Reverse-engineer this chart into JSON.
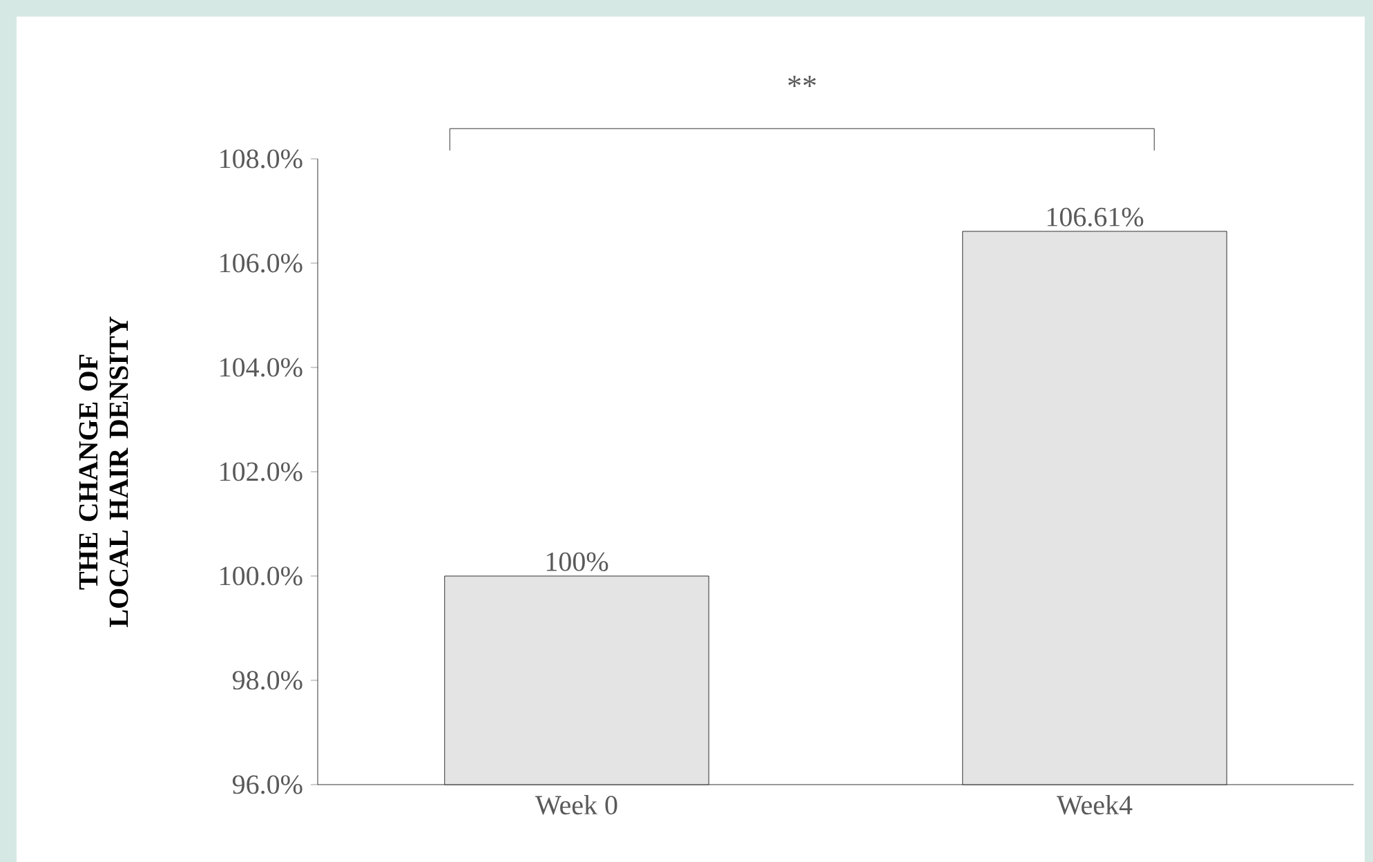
{
  "chart_data": {
    "type": "bar",
    "ylabel": "THE CHANGE OF LOCAL HAIR DENSITY",
    "categories": [
      "Week 0",
      "Week4"
    ],
    "values": [
      100,
      106.61
    ],
    "value_labels": [
      "100%",
      "106.61%"
    ],
    "ylim": [
      96,
      108
    ],
    "yticks": [
      {
        "value": 96,
        "label": "96.0%"
      },
      {
        "value": 98,
        "label": "98.0%"
      },
      {
        "value": 100,
        "label": "100.0%"
      },
      {
        "value": 102,
        "label": "102.0%"
      },
      {
        "value": 104,
        "label": "104.0%"
      },
      {
        "value": 106,
        "label": "106.0%"
      },
      {
        "value": 108,
        "label": "108.0%"
      }
    ],
    "annotations": [
      "**"
    ],
    "grid": false
  }
}
